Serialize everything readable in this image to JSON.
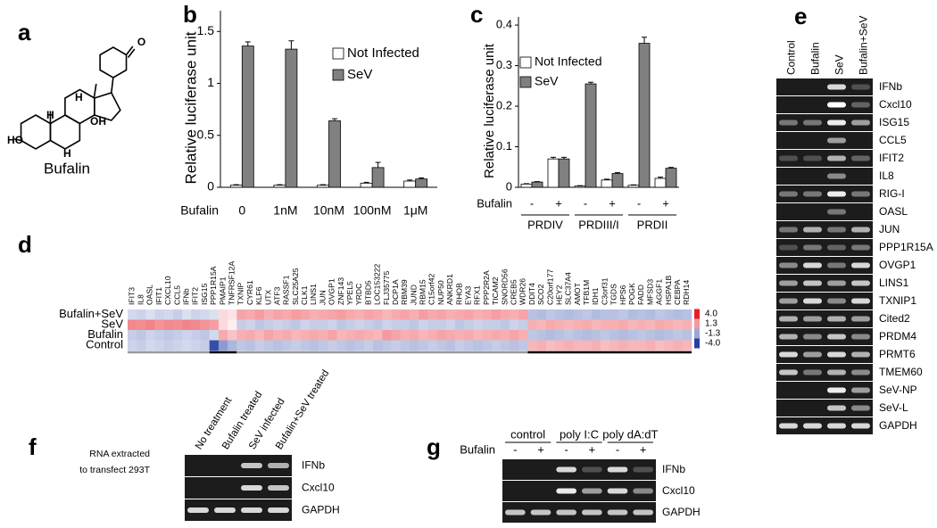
{
  "panel_labels": [
    "a",
    "b",
    "c",
    "d",
    "e",
    "f",
    "g"
  ],
  "panel_a": {
    "compound": "Bufalin",
    "atoms": [
      "O",
      "HO",
      "H",
      "H",
      "H",
      "OH"
    ]
  },
  "chart_data": [
    {
      "type": "bar",
      "ylabel": "Relative luciferase unit",
      "xlabel": "Bufalin",
      "categories": [
        "0",
        "1nM",
        "10nM",
        "100nM",
        "1μM"
      ],
      "series": [
        {
          "name": "Not Infected",
          "color": "#ffffff",
          "values": [
            0.02,
            0.02,
            0.02,
            0.04,
            0.06
          ],
          "errors": [
            0.005,
            0.005,
            0.005,
            0.008,
            0.01
          ]
        },
        {
          "name": "SeV",
          "color": "#808080",
          "values": [
            1.36,
            1.33,
            0.64,
            0.19,
            0.08
          ],
          "errors": [
            0.04,
            0.08,
            0.02,
            0.05,
            0.01
          ]
        }
      ],
      "ylim": [
        0,
        1.7
      ],
      "yticks": [
        0,
        0.5,
        1,
        1.5
      ]
    },
    {
      "type": "bar",
      "ylabel": "Relative luciferase unit",
      "xlabel": "Bufalin",
      "categories": [
        "-",
        "+",
        "-",
        "+",
        "-",
        "+"
      ],
      "groups": [
        "PRDIV",
        "PRDIII/I",
        "PRDII"
      ],
      "series": [
        {
          "name": "Not Infected",
          "color": "#ffffff",
          "values": [
            0.008,
            0.07,
            0.003,
            0.018,
            0.005,
            0.022
          ],
          "errors": [
            0.001,
            0.004,
            0.001,
            0.002,
            0.001,
            0.003
          ]
        },
        {
          "name": "SeV",
          "color": "#808080",
          "values": [
            0.013,
            0.07,
            0.255,
            0.034,
            0.355,
            0.047
          ],
          "errors": [
            0.001,
            0.004,
            0.004,
            0.002,
            0.015,
            0.002
          ]
        }
      ],
      "ylim": [
        0,
        0.42
      ],
      "yticks": [
        0,
        0.1,
        0.2,
        0.3,
        0.4
      ]
    },
    {
      "type": "heatmap",
      "columns": [
        "IFIT3",
        "IL8",
        "OASL",
        "IFIT1",
        "CXCL10",
        "CCL5",
        "IFNb",
        "IFIT2",
        "ISG15",
        "PPP1R15A",
        "PMAIP1",
        "TNFRSF12A",
        "TXNIP",
        "CYR61",
        "KLF6",
        "UTX",
        "ATF3",
        "RASSF1",
        "SLC25A25",
        "CLK1",
        "LINS1",
        "JUN",
        "OVGP1",
        "ZNF143",
        "YPEL5",
        "YRDC",
        "BTBD5",
        "LOC153222",
        "FLJ35775",
        "DCP1A",
        "RBM39",
        "JUND",
        "RBM15",
        "C15orf42",
        "NUP50",
        "ANKRD1",
        "RHOB",
        "EYA3",
        "RFX1",
        "PPP2R2A",
        "TICAM2",
        "SNORD56",
        "CREB5",
        "WDR26",
        "DDIT4",
        "SCO2",
        "C20orf177",
        "HEY2",
        "SLC37A4",
        "AMOT",
        "TFB1M",
        "IDH1",
        "C3orf31",
        "TGDS",
        "HPS6",
        "POGK",
        "FADD",
        "MFSD3",
        "AGGF1",
        "HSPA1B",
        "CEBPA",
        "RDH14"
      ],
      "rows": [
        "Bufalin+SeV",
        "SeV",
        "Bufalin",
        "Control"
      ],
      "values": [
        [
          -0.4,
          -0.5,
          -0.3,
          -0.5,
          -0.4,
          -0.6,
          -0.3,
          -0.5,
          -0.4,
          -0.3,
          0.3,
          0.2,
          1.1,
          1.0,
          1.2,
          0.9,
          1.1,
          1.0,
          1.2,
          1.1,
          0.9,
          1.0,
          1.1,
          1.2,
          1.0,
          0.9,
          1.1,
          1.0,
          0.8,
          1.0,
          1.1,
          0.9,
          1.2,
          1.0,
          1.1,
          0.9,
          1.0,
          1.1,
          0.9,
          1.0,
          1.2,
          1.0,
          0.9,
          1.1,
          -0.8,
          -0.9,
          -0.7,
          -0.8,
          -0.9,
          -0.8,
          -0.7,
          -0.9,
          -0.8,
          -0.8,
          -0.7,
          -0.9,
          -0.8,
          -0.9,
          -0.7,
          -0.8,
          -0.9,
          -0.8
        ],
        [
          1.6,
          1.5,
          1.7,
          1.4,
          1.6,
          1.5,
          1.7,
          1.6,
          1.4,
          1.2,
          0.3,
          0.1,
          -0.6,
          -0.5,
          -0.7,
          -0.6,
          -0.5,
          -0.6,
          -0.7,
          -0.5,
          -0.6,
          -0.6,
          -0.5,
          -0.7,
          -0.6,
          -0.5,
          -0.6,
          -0.7,
          -0.5,
          -0.6,
          -0.6,
          -0.7,
          -0.5,
          -0.6,
          -0.6,
          -0.5,
          -0.7,
          -0.6,
          -0.5,
          -0.6,
          -0.6,
          -0.7,
          -0.5,
          -0.6,
          0.9,
          0.8,
          1.0,
          0.9,
          0.8,
          0.9,
          1.0,
          0.8,
          0.9,
          0.9,
          1.0,
          0.8,
          0.9,
          0.8,
          1.0,
          0.9,
          0.8,
          0.9
        ],
        [
          -0.6,
          -0.7,
          -0.5,
          -0.6,
          -0.7,
          -0.6,
          -0.5,
          -0.6,
          -0.7,
          -0.4,
          1.0,
          0.6,
          0.9,
          1.0,
          0.8,
          1.1,
          0.9,
          1.0,
          0.8,
          0.9,
          1.0,
          0.9,
          1.1,
          0.8,
          0.9,
          1.0,
          0.9,
          0.8,
          1.3,
          1.1,
          0.9,
          1.0,
          0.8,
          0.9,
          1.1,
          1.0,
          0.9,
          1.0,
          0.8,
          0.9,
          1.0,
          0.9,
          1.1,
          0.9,
          -0.7,
          -0.8,
          -0.9,
          -0.8,
          -0.7,
          -0.8,
          -0.9,
          -0.8,
          -0.7,
          -0.8,
          -0.9,
          -0.8,
          -0.7,
          -0.8,
          -0.9,
          -0.8,
          -0.7,
          -0.8
        ],
        [
          -0.5,
          -0.6,
          -0.4,
          -0.5,
          -0.6,
          -0.5,
          -0.4,
          -0.5,
          -0.6,
          -3.6,
          -1.6,
          -1.0,
          -0.7,
          -0.8,
          -0.6,
          -0.7,
          -0.8,
          -0.7,
          -0.6,
          -0.7,
          -0.8,
          -0.7,
          -0.6,
          -0.7,
          -0.8,
          -0.7,
          -0.6,
          -0.8,
          -0.7,
          -0.6,
          -0.7,
          -0.8,
          -0.7,
          -0.6,
          -0.7,
          -0.8,
          -0.6,
          -0.7,
          -0.8,
          -0.7,
          -0.6,
          -0.7,
          -0.8,
          -0.7,
          0.8,
          0.9,
          0.7,
          0.8,
          0.9,
          0.8,
          0.8,
          0.9,
          0.7,
          0.8,
          0.9,
          0.8,
          0.8,
          0.9,
          0.7,
          0.8,
          0.9,
          0.8
        ]
      ],
      "scale": [
        {
          "value": 4,
          "label": "4.0"
        },
        1.3,
        -1.3,
        {
          "value": -4,
          "label": "-4.0"
        }
      ]
    }
  ],
  "panel_e": {
    "lanes": [
      "Control",
      "Bufalin",
      "SeV",
      "Bufalin+SeV"
    ],
    "genes": [
      "IFNb",
      "Cxcl10",
      "ISG15",
      "CCL5",
      "IFIT2",
      "IL8",
      "RIG-I",
      "OASL",
      "JUN",
      "PPP1R15A",
      "OVGP1",
      "LINS1",
      "TXNIP1",
      "Cited2",
      "PRDM4",
      "PRMT6",
      "TMEM60",
      "SeV-NP",
      "SeV-L",
      "GAPDH"
    ]
  },
  "panel_f": {
    "note": [
      "RNA extracted",
      "to transfect 293T"
    ],
    "lanes": [
      "No treatment",
      "Bufalin treated",
      "SeV infected",
      "Bufalin+SeV treated"
    ],
    "genes": [
      "IFNb",
      "Cxcl10",
      "GAPDH"
    ]
  },
  "panel_g": {
    "groups": [
      "control",
      "poly I:C",
      "poly dA:dT"
    ],
    "treatment": "Bufalin",
    "lanes": [
      "-",
      "+",
      "-",
      "+",
      "-",
      "+"
    ],
    "genes": [
      "IFNb",
      "Cxcl10",
      "GAPDH"
    ]
  }
}
